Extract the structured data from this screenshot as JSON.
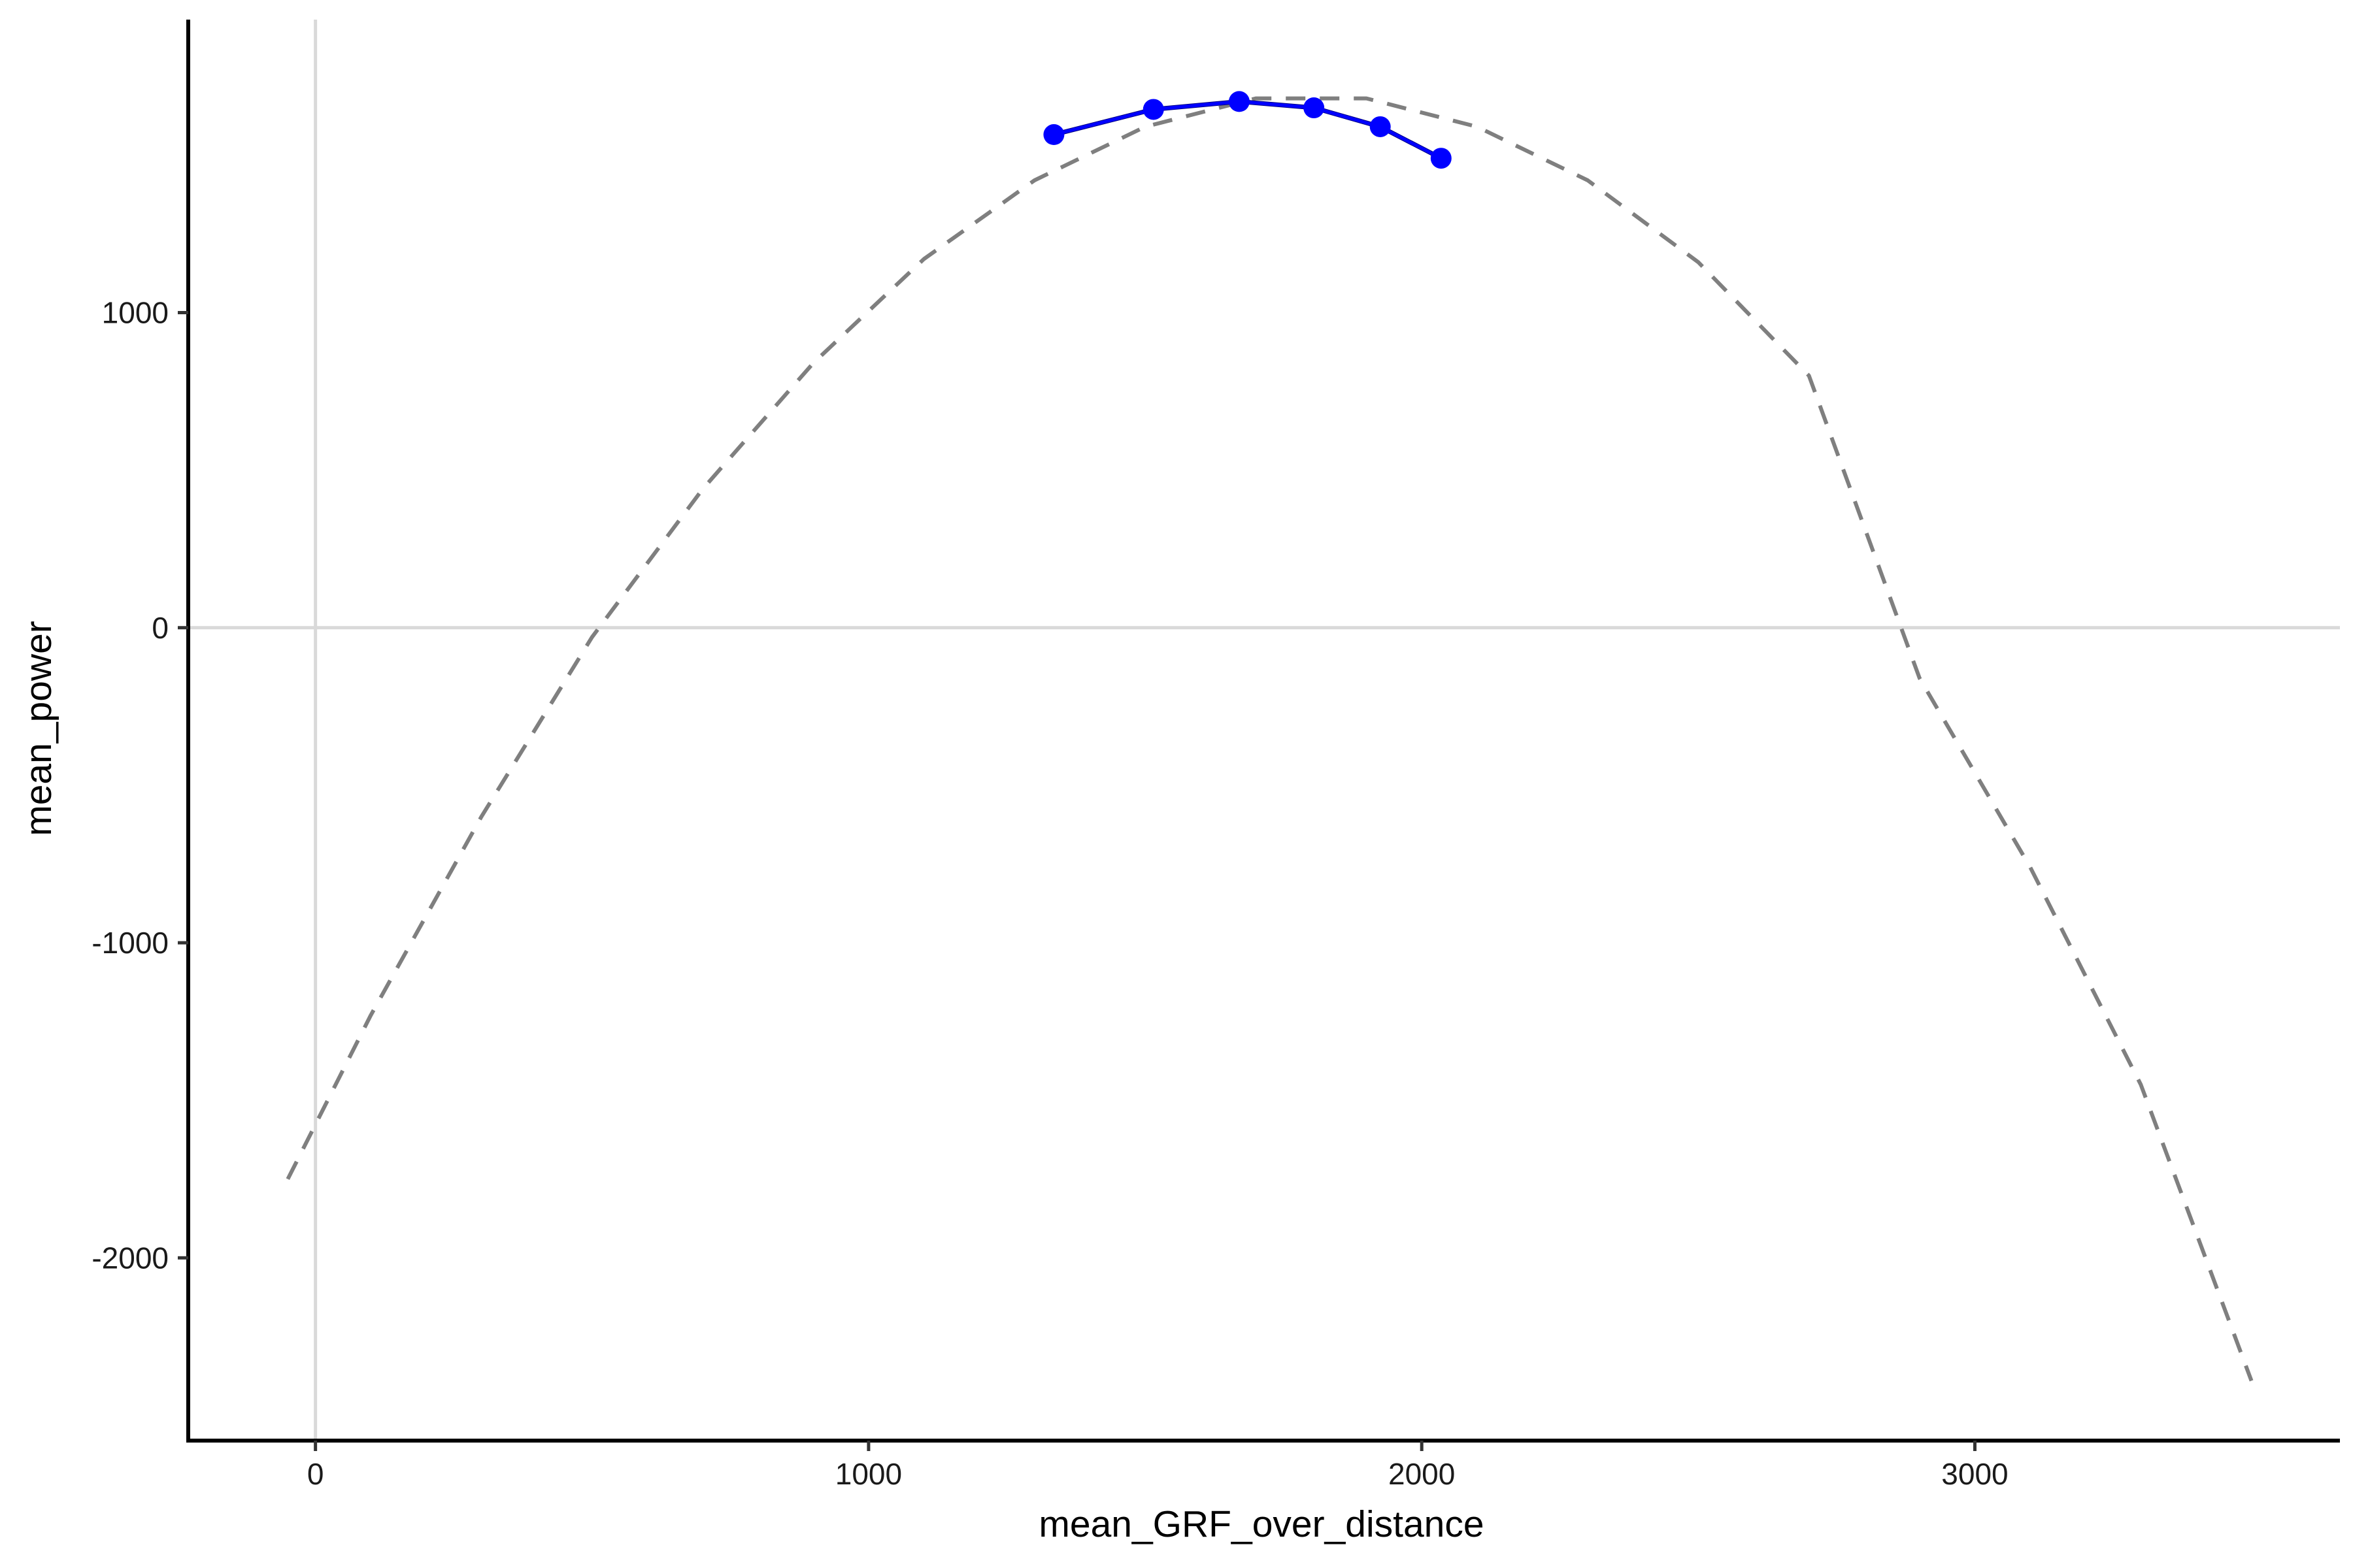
{
  "chart_data": {
    "type": "line",
    "title": "",
    "xlabel": "mean_GRF_over_distance",
    "ylabel": "mean_power",
    "xlim": [
      -230,
      3660
    ],
    "ylim": [
      -2580,
      1930
    ],
    "x_ticks": [
      0,
      1000,
      2000,
      3000
    ],
    "x_tick_labels": [
      "0",
      "1000",
      "2000",
      "3000"
    ],
    "y_ticks": [
      -2000,
      -1000,
      0,
      1000
    ],
    "y_tick_labels": [
      "-2000",
      "-1000",
      "0",
      "1000"
    ],
    "grid": false,
    "reference_lines": {
      "x": 0,
      "y": 0,
      "color": "#d9d9d9"
    },
    "series": [
      {
        "style": "dashed",
        "color": "#7f7f7f",
        "x": [
          -50,
          100,
          300,
          500,
          700,
          900,
          1100,
          1300,
          1500,
          1700,
          1900,
          2100,
          2300,
          2500,
          2700,
          2900,
          3100,
          3300,
          3500
        ],
        "values": [
          -1750,
          -1230,
          -600,
          -30,
          440,
          840,
          1170,
          1420,
          1590,
          1680,
          1680,
          1590,
          1420,
          1160,
          800,
          -160,
          -760,
          -1450,
          -2390
        ]
      },
      {
        "style": "solid",
        "color": "#0000ff",
        "markers": true,
        "x": [
          1335,
          1515,
          1670,
          1805,
          1925,
          2035
        ],
        "values": [
          1565,
          1645,
          1670,
          1650,
          1590,
          1490
        ]
      }
    ]
  }
}
